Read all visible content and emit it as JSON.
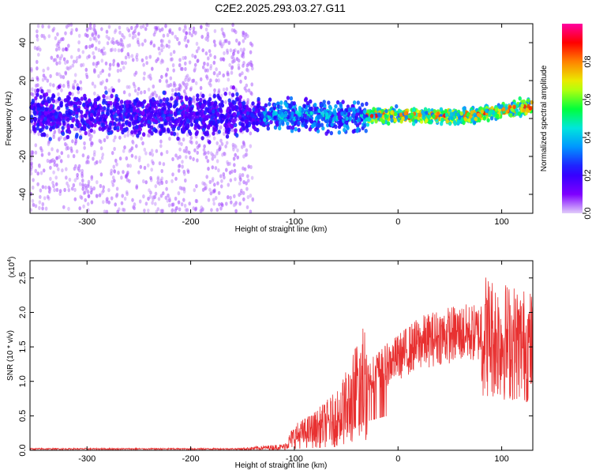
{
  "title": "C2E2.2025.293.03.27.G11",
  "chart_data": [
    {
      "type": "heatmap",
      "xlabel": "Height of straight line (km)",
      "ylabel": "Frequency (Hz)",
      "xlim": [
        -355,
        130
      ],
      "ylim": [
        -50,
        50
      ],
      "xticks": [
        -300,
        -200,
        -100,
        0,
        100
      ],
      "yticks": [
        -40,
        -20,
        0,
        20,
        40
      ],
      "grid": false,
      "colorbar": {
        "label": "Normalized spectral amplitude",
        "range": [
          0,
          1
        ],
        "ticks": [
          "0.0",
          "0.2",
          "0.4",
          "0.6",
          "0.8"
        ],
        "colors": [
          "#ffffff",
          "#7f00ff",
          "#0000ff",
          "#00bfff",
          "#00ff00",
          "#ffff00",
          "#ff8000",
          "#ff0000",
          "#ff00a0"
        ]
      },
      "band_center_hz": [
        {
          "x": -350,
          "y": 2
        },
        {
          "x": -150,
          "y": 2
        },
        {
          "x": -50,
          "y": 1
        },
        {
          "x": 0,
          "y": 1.5
        },
        {
          "x": 60,
          "y": 1
        },
        {
          "x": 125,
          "y": 6
        }
      ]
    },
    {
      "type": "line",
      "xlabel": "Height of straight line (km)",
      "ylabel": "SNR (10 * v/v)",
      "scale_label": "(x10",
      "scale_exp": "4",
      "scale_close": ")",
      "xlim": [
        -355,
        130
      ],
      "ylim": [
        0,
        2.75
      ],
      "xticks": [
        -300,
        -200,
        -100,
        0,
        100
      ],
      "yticks": [
        "0.0",
        "0.5",
        "1.0",
        "1.5",
        "2.0",
        "2.5"
      ],
      "grid": false,
      "series_color": "#e83030",
      "envelope": [
        {
          "x": -355,
          "y": 0.02
        },
        {
          "x": -150,
          "y": 0.02
        },
        {
          "x": -110,
          "y": 0.05
        },
        {
          "x": -100,
          "y": 0.2
        },
        {
          "x": -80,
          "y": 0.3
        },
        {
          "x": -60,
          "y": 0.45
        },
        {
          "x": -45,
          "y": 0.7
        },
        {
          "x": -35,
          "y": 1.0
        },
        {
          "x": -20,
          "y": 1.15
        },
        {
          "x": 0,
          "y": 1.35
        },
        {
          "x": 20,
          "y": 1.55
        },
        {
          "x": 40,
          "y": 1.65
        },
        {
          "x": 60,
          "y": 1.7
        },
        {
          "x": 80,
          "y": 1.7
        },
        {
          "x": 100,
          "y": 1.6
        },
        {
          "x": 130,
          "y": 1.5
        }
      ]
    }
  ]
}
